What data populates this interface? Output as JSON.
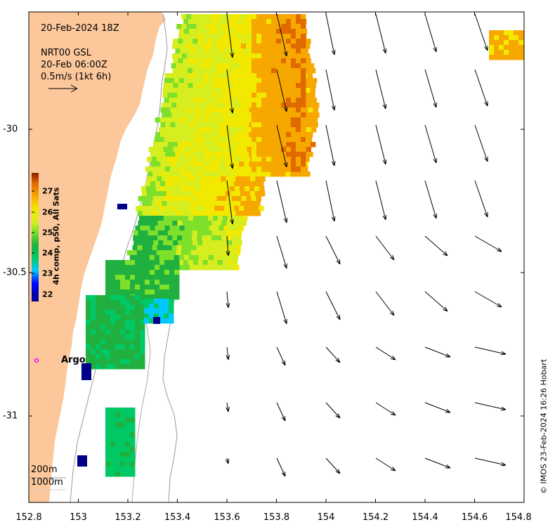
{
  "header": {
    "date": "20-Feb-2024 18Z",
    "source": "NRT00 GSL",
    "source_time": "20-Feb 06:00Z",
    "scale_label": "0.5m/s (1kt 6h)"
  },
  "map": {
    "lon_ticks": [
      "152.8",
      "153",
      "153.2",
      "153.4",
      "153.6",
      "153.8",
      "154",
      "154.2",
      "154.4",
      "154.6",
      "154.8"
    ],
    "lat_ticks": [
      "-30",
      "-30.5",
      "-31"
    ],
    "colors": {
      "land": "#fcc89b",
      "ocean": "#ffffff",
      "argo": "#ff00ff",
      "isobath": "#999999"
    }
  },
  "colorbar": {
    "label": "4h comp, p50, All Sats",
    "ticks": [
      "27",
      "26",
      "25",
      "24",
      "23",
      "22"
    ],
    "range": [
      21.8,
      28
    ]
  },
  "argo": {
    "label": "Argo",
    "lon": 152.83,
    "lat": -30.81
  },
  "isobaths": {
    "shallow": "200m",
    "deep": "1000m"
  },
  "credit": "© IMOS 23-Feb-2024 16:26 Hobart"
}
